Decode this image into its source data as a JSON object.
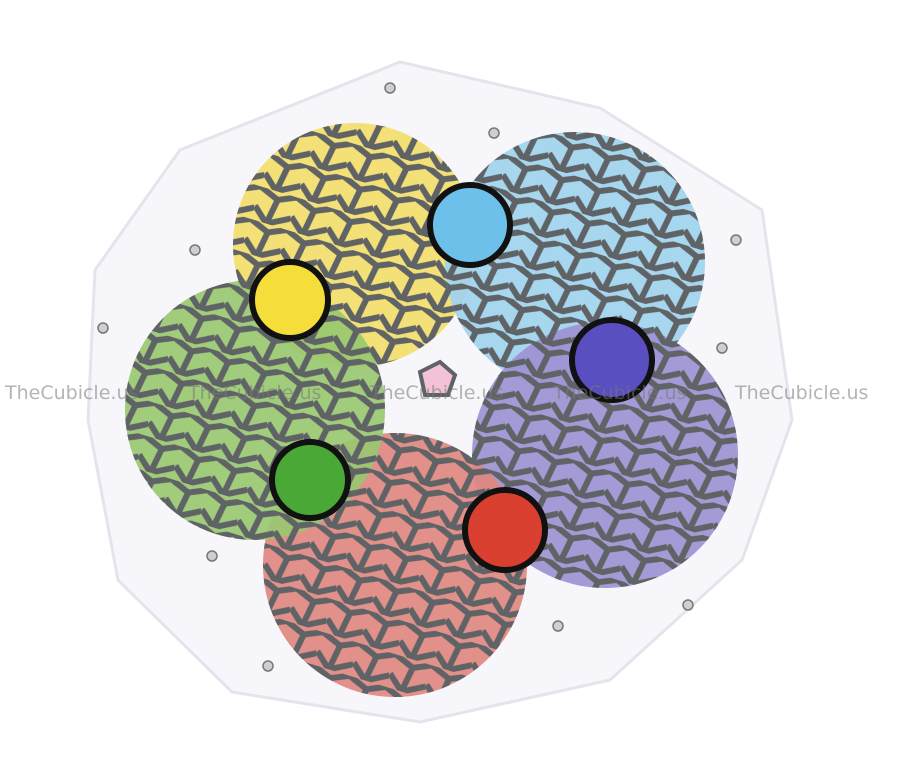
{
  "watermark": {
    "text": "TheCubicle.us",
    "repeat": 5
  },
  "colors": {
    "plate": "#f7f7fb",
    "yellow": "#f2dd6a",
    "blue": "#9fd3ee",
    "purple": "#9c93d2",
    "red": "#e08780",
    "green": "#98c870",
    "grid": "#5f6366",
    "center": "#f3c2d8",
    "deep_blue": "#5a4fc0",
    "deep_red": "#d9402f",
    "deep_green": "#4aa836",
    "deep_yellow": "#f5de3a"
  }
}
